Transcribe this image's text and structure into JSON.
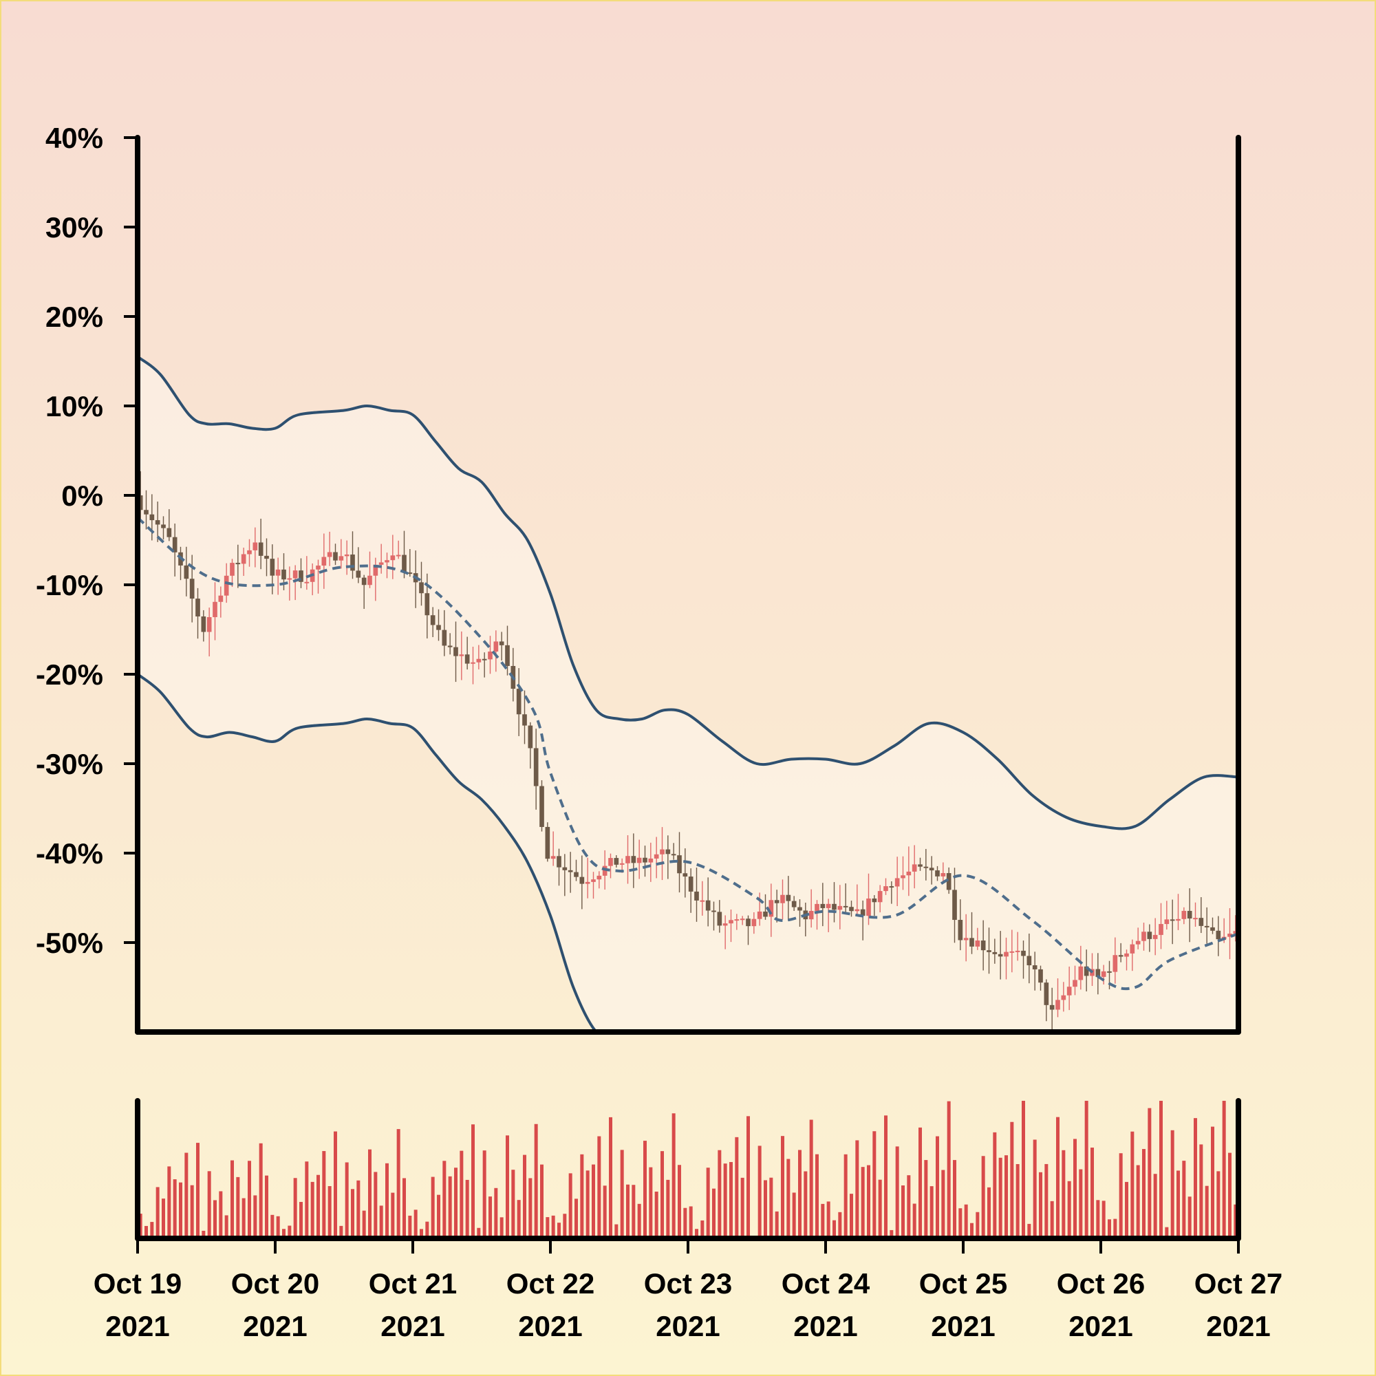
{
  "chart_data": {
    "type": "candlestick",
    "title": "",
    "xlabel": "",
    "ylabel": "",
    "y_unit": "%",
    "ylim": [
      -60,
      40
    ],
    "y_ticks": [
      40,
      30,
      20,
      10,
      0,
      -10,
      -20,
      -30,
      -40,
      -50
    ],
    "y_tick_labels": [
      "40%",
      "30%",
      "20%",
      "10%",
      "0%",
      "-10%",
      "-20%",
      "-30%",
      "-40%",
      "-50%"
    ],
    "x_range": [
      "2021-10-19",
      "2021-10-27"
    ],
    "x_ticks": [
      "2021-10-19",
      "2021-10-20",
      "2021-10-21",
      "2021-10-22",
      "2021-10-23",
      "2021-10-24",
      "2021-10-25",
      "2021-10-26",
      "2021-10-27"
    ],
    "x_tick_labels": [
      {
        "line1": "Oct 19",
        "line2": "2021"
      },
      {
        "line1": "Oct 20",
        "line2": "2021"
      },
      {
        "line1": "Oct 21",
        "line2": "2021"
      },
      {
        "line1": "Oct 22",
        "line2": "2021"
      },
      {
        "line1": "Oct 23",
        "line2": "2021"
      },
      {
        "line1": "Oct 24",
        "line2": "2021"
      },
      {
        "line1": "Oct 25",
        "line2": "2021"
      },
      {
        "line1": "Oct 26",
        "line2": "2021"
      },
      {
        "line1": "Oct 27",
        "line2": "2021"
      }
    ],
    "candles_per_day": 24,
    "close_path": [
      [
        "2021-10-19",
        0
      ],
      [
        "2021-10-19T06",
        -5
      ],
      [
        "2021-10-19T12",
        -15
      ],
      [
        "2021-10-19T16",
        -9
      ],
      [
        "2021-10-19T21",
        -5
      ],
      [
        "2021-10-20",
        -9
      ],
      [
        "2021-10-20T06",
        -9
      ],
      [
        "2021-10-20T12",
        -6
      ],
      [
        "2021-10-20T16",
        -10
      ],
      [
        "2021-10-20T21",
        -6
      ],
      [
        "2021-10-21",
        -9
      ],
      [
        "2021-10-21T06",
        -17
      ],
      [
        "2021-10-21T12",
        -19
      ],
      [
        "2021-10-21T16",
        -16
      ],
      [
        "2021-10-21T21",
        -29
      ],
      [
        "2021-10-22",
        -40
      ],
      [
        "2021-10-22T06",
        -43
      ],
      [
        "2021-10-22T12",
        -41
      ],
      [
        "2021-10-22T16",
        -41
      ],
      [
        "2021-10-22T21",
        -40
      ],
      [
        "2021-10-23",
        -43
      ],
      [
        "2021-10-23T06",
        -48
      ],
      [
        "2021-10-23T12",
        -48
      ],
      [
        "2021-10-23T16",
        -45
      ],
      [
        "2021-10-23T21",
        -47
      ],
      [
        "2021-10-24",
        -46
      ],
      [
        "2021-10-24T06",
        -47
      ],
      [
        "2021-10-24T12",
        -43
      ],
      [
        "2021-10-24T16",
        -42
      ],
      [
        "2021-10-24T21",
        -42
      ],
      [
        "2021-10-25",
        -49
      ],
      [
        "2021-10-25T06",
        -51
      ],
      [
        "2021-10-25T12",
        -52
      ],
      [
        "2021-10-25T16",
        -58
      ],
      [
        "2021-10-25T21",
        -53
      ],
      [
        "2021-10-26",
        -54
      ],
      [
        "2021-10-26T06",
        -50
      ],
      [
        "2021-10-26T12",
        -48
      ],
      [
        "2021-10-26T16",
        -47
      ],
      [
        "2021-10-26T21",
        -50
      ],
      [
        "2021-10-27",
        -49
      ]
    ],
    "moving_average": [
      [
        "2021-10-19",
        -2.5
      ],
      [
        "2021-10-19T12",
        -9
      ],
      [
        "2021-10-20",
        -10
      ],
      [
        "2021-10-20T12",
        -8
      ],
      [
        "2021-10-21",
        -9
      ],
      [
        "2021-10-21T12",
        -16
      ],
      [
        "2021-10-21T21",
        -24
      ],
      [
        "2021-10-22",
        -31
      ],
      [
        "2021-10-22T06",
        -40
      ],
      [
        "2021-10-22T12",
        -42
      ],
      [
        "2021-10-23",
        -41
      ],
      [
        "2021-10-23T12",
        -45
      ],
      [
        "2021-10-23T16",
        -47.5
      ],
      [
        "2021-10-24",
        -46.5
      ],
      [
        "2021-10-24T12",
        -47
      ],
      [
        "2021-10-25",
        -42.5
      ],
      [
        "2021-10-25T12",
        -47.5
      ],
      [
        "2021-10-26",
        -54
      ],
      [
        "2021-10-26T06",
        -55
      ],
      [
        "2021-10-26T12",
        -52
      ],
      [
        "2021-10-27",
        -49
      ]
    ],
    "upper_band": [
      [
        "2021-10-19",
        15.5
      ],
      [
        "2021-10-19T04",
        13.5
      ],
      [
        "2021-10-19T09",
        9
      ],
      [
        "2021-10-19T12",
        8
      ],
      [
        "2021-10-19T16",
        8
      ],
      [
        "2021-10-19T20",
        7.5
      ],
      [
        "2021-10-20",
        7.5
      ],
      [
        "2021-10-20T04",
        9
      ],
      [
        "2021-10-20T12",
        9.5
      ],
      [
        "2021-10-20T16",
        10
      ],
      [
        "2021-10-20T20",
        9.5
      ],
      [
        "2021-10-21",
        9
      ],
      [
        "2021-10-21T04",
        6
      ],
      [
        "2021-10-21T08",
        3
      ],
      [
        "2021-10-21T12",
        1.5
      ],
      [
        "2021-10-21T16",
        -2
      ],
      [
        "2021-10-21T20",
        -5
      ],
      [
        "2021-10-22",
        -11
      ],
      [
        "2021-10-22T04",
        -19
      ],
      [
        "2021-10-22T08",
        -24
      ],
      [
        "2021-10-22T12",
        -25
      ],
      [
        "2021-10-22T16",
        -25
      ],
      [
        "2021-10-22T20",
        -24
      ],
      [
        "2021-10-23",
        -24.5
      ],
      [
        "2021-10-23T06",
        -27.5
      ],
      [
        "2021-10-23T12",
        -30
      ],
      [
        "2021-10-23T18",
        -29.5
      ],
      [
        "2021-10-24",
        -29.5
      ],
      [
        "2021-10-24T06",
        -30
      ],
      [
        "2021-10-24T12",
        -28
      ],
      [
        "2021-10-24T18",
        -25.5
      ],
      [
        "2021-10-25",
        -26.5
      ],
      [
        "2021-10-25T06",
        -29.5
      ],
      [
        "2021-10-25T12",
        -33.5
      ],
      [
        "2021-10-25T18",
        -36
      ],
      [
        "2021-10-26",
        -37
      ],
      [
        "2021-10-26T06",
        -37
      ],
      [
        "2021-10-26T12",
        -34
      ],
      [
        "2021-10-26T18",
        -31.5
      ],
      [
        "2021-10-27",
        -31.5
      ]
    ],
    "lower_band": [
      [
        "2021-10-19",
        -20
      ],
      [
        "2021-10-19T04",
        -22
      ],
      [
        "2021-10-19T09",
        -26
      ],
      [
        "2021-10-19T12",
        -27
      ],
      [
        "2021-10-19T16",
        -26.5
      ],
      [
        "2021-10-19T20",
        -27
      ],
      [
        "2021-10-20",
        -27.5
      ],
      [
        "2021-10-20T04",
        -26
      ],
      [
        "2021-10-20T12",
        -25.5
      ],
      [
        "2021-10-20T16",
        -25
      ],
      [
        "2021-10-20T20",
        -25.5
      ],
      [
        "2021-10-21",
        -26
      ],
      [
        "2021-10-21T04",
        -29
      ],
      [
        "2021-10-21T08",
        -32
      ],
      [
        "2021-10-21T12",
        -34
      ],
      [
        "2021-10-21T16",
        -37
      ],
      [
        "2021-10-21T20",
        -41
      ],
      [
        "2021-10-22",
        -47
      ],
      [
        "2021-10-22T04",
        -55
      ],
      [
        "2021-10-22T08",
        -60
      ],
      [
        "2021-10-22T12",
        -61
      ],
      [
        "2021-10-22T16",
        -61
      ],
      [
        "2021-10-22T20",
        -60
      ],
      [
        "2021-10-23",
        -60.5
      ]
    ],
    "volume_pattern": [
      2,
      1,
      1.5,
      5,
      3,
      6,
      4.5,
      5,
      7,
      4,
      8,
      0.5,
      6,
      3.5,
      4,
      2,
      7,
      5,
      3,
      6,
      4,
      8,
      5,
      2
    ],
    "colors": {
      "candle_up": "#e06a6a",
      "candle_down": "#6e5a48",
      "volume": "#d84a4a",
      "bands": "#2e5070",
      "moving_average": "#4f6e8c",
      "axis": "#000000",
      "background_top": "#f8dcd2",
      "background_bottom": "#fcf4d2",
      "border": "#f3dc7a"
    },
    "grid": false,
    "legend": "none"
  }
}
